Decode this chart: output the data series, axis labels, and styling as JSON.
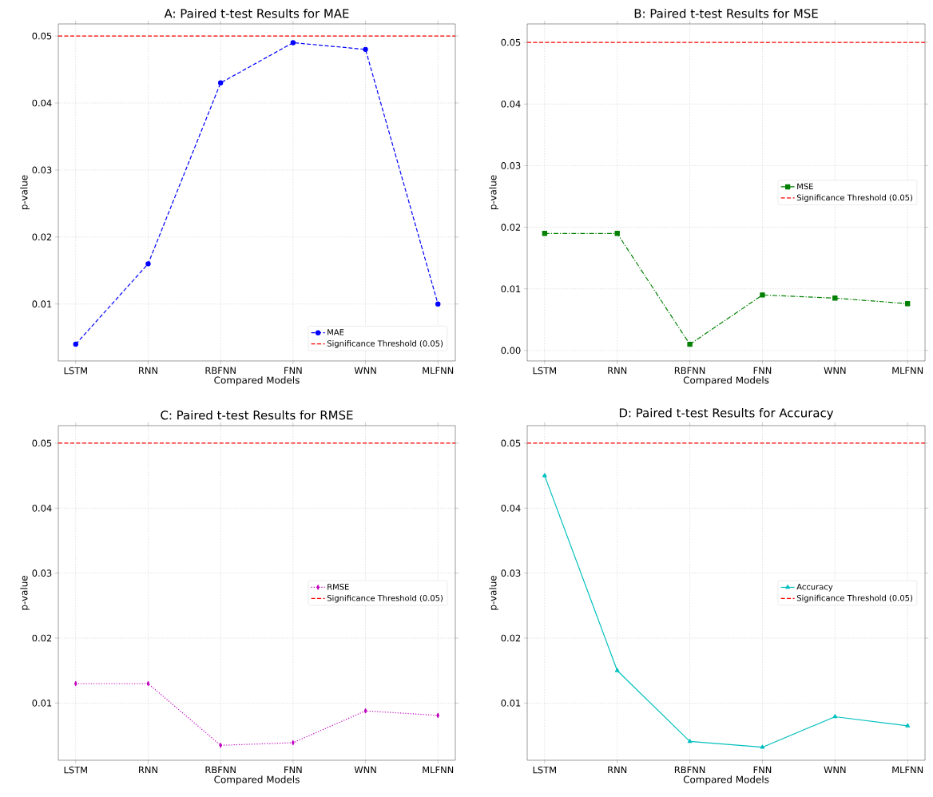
{
  "chart_data": [
    {
      "type": "line",
      "title": "A: Paired t-test Results for MAE",
      "xlabel": "Compared Models",
      "ylabel": "p-value",
      "categories": [
        "LSTM",
        "RNN",
        "RBFNN",
        "FNN",
        "WNN",
        "MLFNN"
      ],
      "series": [
        {
          "name": "MAE",
          "color": "#0000ff",
          "marker": "circle",
          "line_style": "dashed",
          "values": [
            0.004,
            0.016,
            0.043,
            0.049,
            0.048,
            0.01
          ]
        }
      ],
      "ref_lines": [
        {
          "axis": "y",
          "value": 0.05,
          "label": "Significance Threshold (0.05)",
          "color": "#ff0000",
          "line_style": "dashed"
        }
      ],
      "ylim": [
        0.0015,
        0.0518
      ],
      "yticks": [
        0.01,
        0.02,
        0.03,
        0.04,
        0.05
      ],
      "grid": true,
      "legend": "bottom right"
    },
    {
      "type": "line",
      "title": "B: Paired t-test Results for MSE",
      "xlabel": "Compared Models",
      "ylabel": "p-value",
      "categories": [
        "LSTM",
        "RNN",
        "RBFNN",
        "FNN",
        "WNN",
        "MLFNN"
      ],
      "series": [
        {
          "name": "MSE",
          "color": "#008000",
          "marker": "square",
          "line_style": "dashdot",
          "values": [
            0.019,
            0.019,
            0.001,
            0.009,
            0.0085,
            0.0076
          ]
        }
      ],
      "ref_lines": [
        {
          "axis": "y",
          "value": 0.05,
          "label": "Significance Threshold (0.05)",
          "color": "#ff0000",
          "line_style": "dashed"
        }
      ],
      "ylim": [
        -0.0017,
        0.053
      ],
      "yticks": [
        {
          "value": 0,
          "label": "0.00"
        },
        0.01,
        0.02,
        0.03,
        0.04,
        0.05
      ],
      "grid": true,
      "legend": "right"
    },
    {
      "type": "line",
      "title": "C: Paired t-test Results for RMSE",
      "xlabel": "Compared Models",
      "ylabel": "p-value",
      "categories": [
        "LSTM",
        "RNN",
        "RBFNN",
        "FNN",
        "WNN",
        "MLFNN"
      ],
      "series": [
        {
          "name": "RMSE",
          "color": "#bf00bf",
          "marker": "diamond",
          "line_style": "dotted",
          "values": [
            0.013,
            0.013,
            0.0035,
            0.0039,
            0.0088,
            0.0081
          ]
        }
      ],
      "ref_lines": [
        {
          "axis": "y",
          "value": 0.05,
          "label": "Significance Threshold (0.05)",
          "color": "#ff0000",
          "line_style": "dashed"
        }
      ],
      "ylim": [
        0.0012,
        0.0527
      ],
      "yticks": [
        0.01,
        0.02,
        0.03,
        0.04,
        0.05
      ],
      "grid": true,
      "legend": "right"
    },
    {
      "type": "line",
      "title": "D: Paired t-test Results for Accuracy",
      "xlabel": "Compared Models",
      "ylabel": "p-value",
      "categories": [
        "LSTM",
        "RNN",
        "RBFNN",
        "FNN",
        "WNN",
        "MLFNN"
      ],
      "series": [
        {
          "name": "Accuracy",
          "color": "#00bfbf",
          "marker": "triangle",
          "line_style": "solid",
          "values": [
            0.045,
            0.015,
            0.0041,
            0.0032,
            0.0079,
            0.0065
          ]
        }
      ],
      "ref_lines": [
        {
          "axis": "y",
          "value": 0.05,
          "label": "Significance Threshold (0.05)",
          "color": "#ff0000",
          "line_style": "dashed"
        }
      ],
      "ylim": [
        0.0012,
        0.0527
      ],
      "yticks": [
        0.01,
        0.02,
        0.03,
        0.04,
        0.05
      ],
      "grid": true,
      "legend": "right"
    }
  ]
}
